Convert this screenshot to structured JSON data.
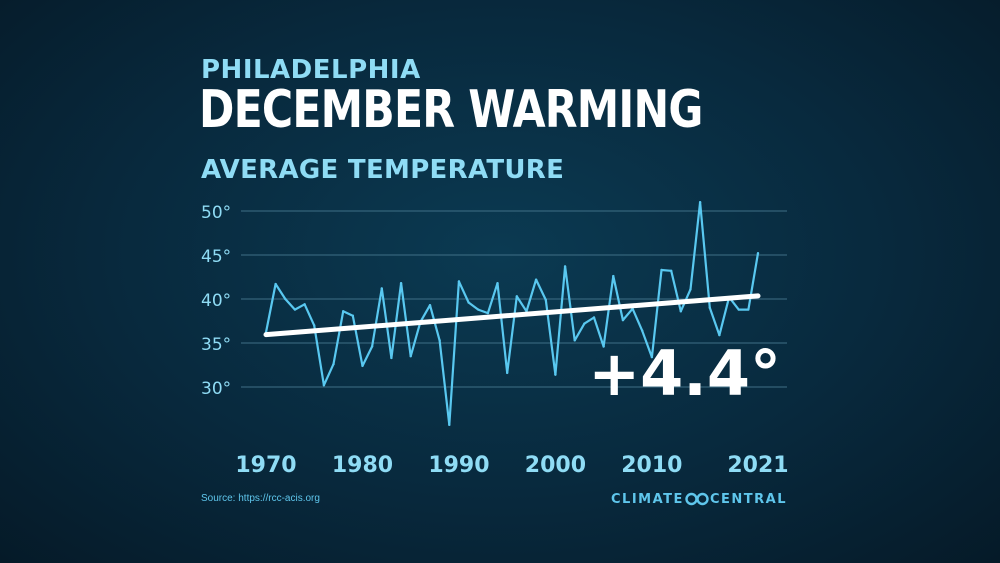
{
  "header": {
    "city": "PHILADELPHIA",
    "title": "DECEMBER WARMING",
    "subtitle": "AVERAGE TEMPERATURE"
  },
  "footer": {
    "source": "Source: https://rcc-acis.org",
    "brand_left": "CLIMATE",
    "brand_right": "CENTRAL",
    "brand_icon": "infinity-loop-icon"
  },
  "colors": {
    "series": "#59c8f0",
    "trend": "#ffffff",
    "accent_text": "#8fdcf5",
    "grid": "#3f6f86"
  },
  "chart_data": {
    "type": "line",
    "title": "AVERAGE TEMPERATURE",
    "xlabel": "",
    "ylabel": "",
    "xlim": [
      1970,
      2021
    ],
    "ylim": [
      25,
      51
    ],
    "grid": true,
    "y_ticks": [
      50,
      45,
      40,
      35,
      30
    ],
    "y_tick_labels": [
      "50°",
      "45°",
      "40°",
      "35°",
      "30°"
    ],
    "x_ticks": [
      1970,
      1980,
      1990,
      2000,
      2010,
      2021
    ],
    "x_tick_labels": [
      "1970",
      "1980",
      "1990",
      "2000",
      "2010",
      "2021"
    ],
    "series": [
      {
        "x": [
          1970,
          1971,
          1972,
          1973,
          1974,
          1975,
          1976,
          1977,
          1978,
          1979,
          1980,
          1981,
          1982,
          1983,
          1984,
          1985,
          1986,
          1987,
          1988,
          1989,
          1990,
          1991,
          1992,
          1993,
          1994,
          1995,
          1996,
          1997,
          1998,
          1999,
          2000,
          2001,
          2002,
          2003,
          2004,
          2005,
          2006,
          2007,
          2008,
          2009,
          2010,
          2011,
          2012,
          2013,
          2014,
          2015,
          2016,
          2017,
          2018,
          2019,
          2020,
          2021
        ],
        "values": [
          36.2,
          41.7,
          40.0,
          38.8,
          39.4,
          37.0,
          30.2,
          32.6,
          38.6,
          38.1,
          32.4,
          34.6,
          41.2,
          33.3,
          41.8,
          33.5,
          37.4,
          39.3,
          35.3,
          25.7,
          42.0,
          39.6,
          38.8,
          38.4,
          41.8,
          31.6,
          40.3,
          38.6,
          42.2,
          39.9,
          31.4,
          43.7,
          35.3,
          37.2,
          37.9,
          34.6,
          42.6,
          37.6,
          38.9,
          36.4,
          33.4,
          43.3,
          43.2,
          38.6,
          41.1,
          51.0,
          39.0,
          35.9,
          40.2,
          38.8,
          38.8,
          45.2
        ]
      }
    ],
    "trend": {
      "x": [
        1970,
        2021
      ],
      "values": [
        35.95,
        40.35
      ]
    },
    "annotation": "+4.4°"
  }
}
